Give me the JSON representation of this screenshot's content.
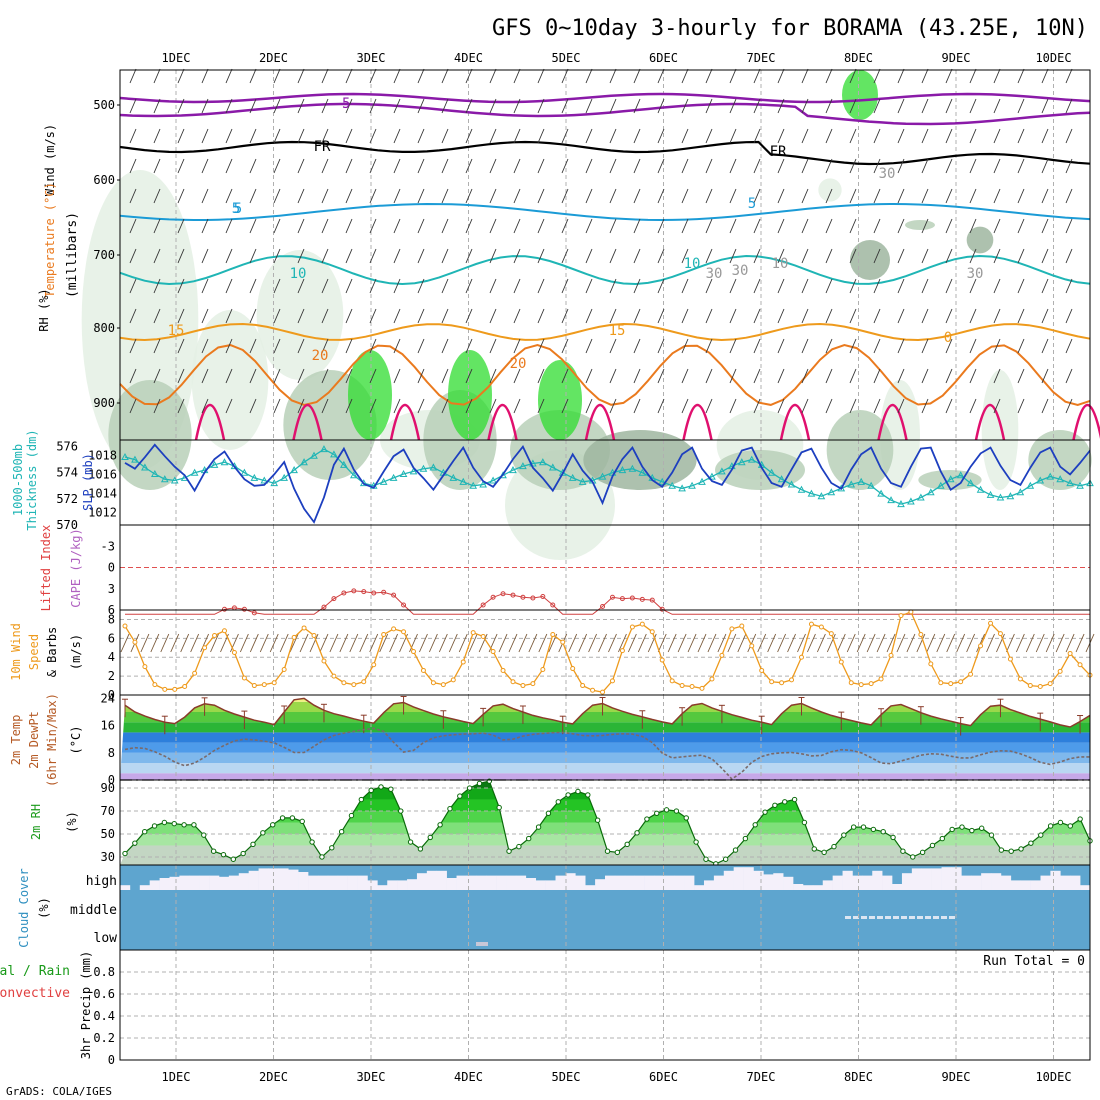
{
  "title": "GFS 0~10day 3-hourly for BORAMA (43.25E, 10N)",
  "credit": "GrADS: COLA/IGES",
  "day_labels": [
    "1DEC",
    "2DEC",
    "3DEC",
    "4DEC",
    "5DEC",
    "6DEC",
    "7DEC",
    "8DEC",
    "9DEC",
    "10DEC"
  ],
  "colors": {
    "purple": "#8a1aa8",
    "cyan": "#1b9bd6",
    "teal": "#1fb5b5",
    "orange": "#ee9a1c",
    "orange_dark": "#ea7a1e",
    "magenta": "#e0106e",
    "rh_light": "#e4f0e4",
    "rh_mid": "#b9d0b9",
    "rh_dark": "#9fb6a0",
    "green_bright": "#2fdc2f",
    "blue_slp": "#1d3fbf",
    "cloud": "#5ea5cf"
  },
  "panels": {
    "upper": {
      "ylabels": [
        {
          "text": "Wind (m/s)",
          "color": "#000000"
        },
        {
          "text": "Temperature (°C)",
          "color": "#ea7a1e"
        },
        {
          "text": "RH (%)",
          "color": "#000000"
        },
        {
          "text": "(millibars)",
          "color": "#000000"
        }
      ],
      "ticks": [
        "500",
        "600",
        "700",
        "800",
        "900"
      ],
      "contour_labels": [
        "5",
        "-5",
        "FR",
        "FR",
        "30",
        "5",
        "5",
        "30",
        "10",
        "10",
        "10",
        "30",
        "30",
        "15",
        "15",
        "0",
        "20",
        "20"
      ]
    },
    "slp": {
      "ylabels_left": [
        {
          "text": "1000-500mb",
          "color": "#1fb5b5"
        },
        {
          "text": "Thickness (dm)",
          "color": "#1fb5b5"
        }
      ],
      "ylabel_right": {
        "text": "SLP (mb)",
        "color": "#1d3fbf"
      },
      "ticks_left": [
        "576",
        "574",
        "572",
        "570"
      ],
      "ticks_right": [
        "1018",
        "1016",
        "1014",
        "1012"
      ]
    },
    "cape": {
      "ylabels": [
        {
          "text": "Lifted Index",
          "color": "#e04040"
        },
        {
          "text": "CAPE (J/kg)",
          "color": "#b060c0"
        }
      ],
      "ticks": [
        "-3",
        "0",
        "3",
        "6"
      ]
    },
    "wind10": {
      "ylabels": [
        {
          "text": "10m Wind",
          "color": "#ee9a1c"
        },
        {
          "text": "Speed",
          "color": "#ee9a1c"
        },
        {
          "text": "& Barbs",
          "color": "#000000"
        },
        {
          "text": "(m/s)",
          "color": "#000000"
        }
      ],
      "ticks": [
        "8",
        "6",
        "4",
        "2",
        "0"
      ]
    },
    "temp": {
      "ylabels": [
        {
          "text": "2m Temp",
          "color": "#b55a25"
        },
        {
          "text": "2m DewPt",
          "color": "#b55a25"
        },
        {
          "text": "(6hr Min/Max)",
          "color": "#b55a25"
        },
        {
          "text": "(°C)",
          "color": "#000000"
        }
      ],
      "ticks": [
        "24",
        "16",
        "8",
        "0"
      ]
    },
    "rh2m": {
      "ylabels": [
        {
          "text": "2m RH",
          "color": "#1a9a1a"
        },
        {
          "text": "(%)",
          "color": "#000000"
        }
      ],
      "ticks": [
        "90",
        "70",
        "50",
        "30"
      ]
    },
    "cloud": {
      "ylabels": [
        {
          "text": "Cloud Cover",
          "color": "#3090c0"
        },
        {
          "text": "(%)",
          "color": "#000000"
        }
      ],
      "ticks": [
        "high",
        "middle",
        "low"
      ]
    },
    "precip": {
      "ylabels": [
        {
          "text": "Total / Rain",
          "color": "#1a9a1a"
        },
        {
          "text": "Convective",
          "color": "#e04040"
        },
        {
          "text": "3hr Precip (mm)",
          "color": "#000000"
        }
      ],
      "ticks": [
        "0.8",
        "0.6",
        "0.4",
        "0.2",
        "0"
      ],
      "run_total": "Run Total = 0"
    }
  },
  "chart_data": {
    "type": "line",
    "x_axis": "time (3-hourly, 30 NOV – 10 DEC)",
    "thickness_dm": {
      "ylim": [
        570,
        576.5
      ],
      "values": [
        575.2,
        575.0,
        574.4,
        573.9,
        573.5,
        573.4,
        573.6,
        574.0,
        574.2,
        574.6,
        574.8,
        574.5,
        574.0,
        573.6,
        573.4,
        573.2,
        573.6,
        574.2,
        574.8,
        575.3,
        575.8,
        575.4,
        574.6,
        573.8,
        573.2,
        573.0,
        573.3,
        573.6,
        573.9,
        574.1,
        574.3,
        574.4,
        574.0,
        573.6,
        573.3,
        573.0,
        573.1,
        573.4,
        573.8,
        574.2,
        574.5,
        574.7,
        574.8,
        574.4,
        574.0,
        573.6,
        573.3,
        573.4,
        573.7,
        574.0,
        574.2,
        574.3,
        574.0,
        573.6,
        573.3,
        573.0,
        572.8,
        573.0,
        573.3,
        573.7,
        574.1,
        574.5,
        574.8,
        575.0,
        574.6,
        574.0,
        573.5,
        573.1,
        572.7,
        572.4,
        572.2,
        572.5,
        572.8,
        573.1,
        573.3,
        573.0,
        572.4,
        571.9,
        571.6,
        571.8,
        572.1,
        572.5,
        573.0,
        573.5,
        573.8,
        573.2,
        572.7,
        572.3,
        572.1,
        572.2,
        572.5,
        573.0,
        573.4,
        573.7,
        573.5,
        573.2,
        573.0,
        573.2
      ]
    },
    "slp_mb": {
      "ylim": [
        1010.7,
        1019.6
      ],
      "values": [
        1017.2,
        1016.6,
        1017.8,
        1019.1,
        1017.9,
        1016.8,
        1015.9,
        1014.3,
        1016.2,
        1017.6,
        1018.4,
        1016.8,
        1015.5,
        1014.8,
        1014.9,
        1016.0,
        1017.3,
        1014.5,
        1012.4,
        1011.0,
        1013.6,
        1017.0,
        1018.7,
        1016.5,
        1015.0,
        1014.6,
        1016.3,
        1017.9,
        1018.6,
        1016.7,
        1015.6,
        1014.4,
        1015.9,
        1017.4,
        1018.8,
        1016.7,
        1015.3,
        1014.7,
        1016.0,
        1017.6,
        1018.9,
        1016.7,
        1015.6,
        1014.3,
        1016.1,
        1018.1,
        1016.4,
        1015.2,
        1013.0,
        1015.8,
        1017.6,
        1018.8,
        1016.8,
        1015.4,
        1014.7,
        1016.2,
        1018.1,
        1018.8,
        1016.6,
        1015.3,
        1014.9,
        1016.5,
        1018.5,
        1018.8,
        1016.7,
        1015.1,
        1014.7,
        1016.5,
        1018.3,
        1018.7,
        1016.7,
        1015.1,
        1014.5,
        1016.5,
        1018.1,
        1018.8,
        1016.6,
        1015.1,
        1014.7,
        1016.8,
        1018.7,
        1018.8,
        1016.3,
        1014.4,
        1015.1,
        1016.8,
        1018.2,
        1018.8,
        1016.9,
        1015.4,
        1014.9,
        1016.7,
        1018.3,
        1018.8,
        1016.8,
        1016.0,
        1017.2,
        1018.5
      ]
    },
    "lifted_index": {
      "ylim": [
        6,
        -6
      ],
      "values": [
        6.6,
        6.6,
        6.6,
        6.6,
        6.6,
        6.6,
        6.6,
        6.6,
        6.6,
        6.6,
        5.9,
        5.7,
        5.9,
        6.4,
        6.6,
        6.6,
        6.6,
        6.6,
        6.6,
        6.6,
        5.6,
        4.4,
        3.6,
        3.3,
        3.4,
        3.6,
        3.5,
        3.9,
        5.3,
        6.6,
        6.6,
        6.6,
        6.6,
        6.6,
        6.6,
        6.6,
        5.3,
        4.2,
        3.7,
        3.9,
        4.2,
        4.3,
        4.1,
        5.3,
        6.6,
        6.6,
        6.6,
        6.6,
        5.5,
        4.2,
        4.4,
        4.3,
        4.5,
        4.6,
        5.9,
        6.6,
        6.6,
        6.6,
        6.6,
        6.6,
        6.6,
        6.6,
        6.6,
        6.6,
        6.6,
        6.6,
        6.6,
        6.6,
        6.6,
        6.6,
        6.6,
        6.6,
        6.6,
        6.6,
        6.6,
        6.6,
        6.6,
        6.6,
        6.6,
        6.6,
        6.6,
        6.6,
        6.6,
        6.6,
        6.6,
        6.6,
        6.6,
        6.6,
        6.6,
        6.6,
        6.6,
        6.6,
        6.6,
        6.6,
        6.6,
        6.6,
        6.6,
        6.6
      ]
    },
    "wind10m_speed": {
      "ylim": [
        0,
        9
      ],
      "values": [
        7.3,
        5.6,
        3.0,
        1.1,
        0.6,
        0.6,
        0.9,
        2.3,
        5.0,
        6.3,
        6.8,
        4.5,
        1.8,
        1.0,
        1.1,
        1.3,
        2.7,
        6.1,
        7.1,
        6.3,
        3.6,
        2.0,
        1.3,
        1.1,
        1.4,
        3.2,
        6.4,
        7.0,
        6.7,
        4.6,
        2.6,
        1.3,
        1.1,
        1.6,
        3.5,
        6.6,
        6.2,
        4.6,
        2.6,
        1.4,
        1.0,
        1.2,
        2.7,
        6.4,
        5.6,
        2.8,
        1.0,
        0.5,
        0.3,
        1.5,
        4.7,
        7.2,
        7.5,
        6.7,
        3.7,
        1.5,
        1.0,
        0.9,
        0.7,
        1.7,
        4.2,
        7.0,
        7.3,
        5.2,
        2.6,
        1.4,
        1.3,
        1.6,
        4.0,
        7.5,
        7.2,
        6.5,
        3.5,
        1.3,
        1.1,
        1.2,
        1.7,
        4.2,
        8.4,
        8.8,
        6.4,
        3.3,
        1.3,
        1.2,
        1.4,
        2.2,
        5.2,
        7.6,
        6.5,
        3.8,
        1.7,
        1.0,
        0.9,
        1.2,
        2.5,
        4.4,
        3.2,
        2.1
      ]
    },
    "temp2m_c": {
      "ylim": [
        0,
        25
      ],
      "values": [
        22.0,
        20.0,
        18.8,
        17.8,
        17.0,
        16.6,
        18.5,
        21.2,
        22.4,
        22.0,
        20.5,
        19.4,
        18.5,
        17.6,
        17.0,
        16.3,
        20.0,
        23.6,
        24.0,
        22.0,
        20.5,
        19.5,
        18.8,
        18.0,
        17.3,
        16.7,
        19.8,
        22.4,
        22.8,
        21.5,
        20.4,
        19.4,
        18.6,
        17.9,
        17.2,
        16.6,
        19.3,
        21.8,
        22.3,
        21.0,
        20.0,
        19.0,
        18.3,
        17.7,
        17.0,
        16.5,
        19.5,
        22.0,
        22.5,
        21.2,
        20.2,
        19.3,
        18.6,
        17.8,
        17.1,
        16.5,
        19.5,
        22.0,
        22.5,
        21.2,
        20.2,
        19.2,
        18.4,
        17.6,
        17.0,
        16.3,
        19.5,
        22.0,
        22.5,
        21.2,
        20.0,
        19.0,
        18.2,
        17.5,
        16.8,
        16.2,
        19.2,
        21.8,
        22.2,
        21.0,
        19.8,
        18.8,
        18.0,
        17.3,
        16.6,
        16.0,
        19.2,
        21.7,
        22.0,
        20.7,
        19.7,
        18.7,
        17.9,
        17.1,
        16.2,
        15.6,
        17.2,
        19.0
      ]
    },
    "dewpt2m_c": {
      "ylim": [
        0,
        25
      ],
      "values": [
        9.0,
        9.5,
        9.3,
        8.3,
        7.0,
        5.3,
        4.2,
        5.0,
        6.7,
        8.7,
        10.2,
        11.5,
        12.0,
        11.8,
        11.4,
        10.9,
        9.6,
        8.1,
        8.1,
        9.9,
        11.8,
        13.1,
        13.8,
        14.3,
        14.8,
        15.2,
        14.3,
        11.1,
        8.2,
        8.7,
        11.0,
        12.4,
        13.0,
        13.3,
        13.5,
        13.6,
        13.8,
        13.2,
        11.8,
        12.0,
        12.9,
        13.4,
        13.7,
        13.9,
        14.0,
        13.6,
        13.1,
        13.0,
        13.1,
        13.4,
        13.6,
        13.5,
        12.8,
        11.0,
        7.9,
        6.5,
        6.8,
        7.1,
        7.3,
        6.2,
        3.4,
        0.3,
        2.3,
        5.2,
        6.9,
        7.7,
        8.0,
        8.1,
        7.7,
        7.1,
        7.2,
        8.3,
        8.9,
        8.7,
        8.0,
        6.6,
        5.0,
        4.8,
        5.6,
        6.4,
        7.3,
        7.7,
        7.6,
        7.0,
        6.5,
        6.5,
        7.4,
        8.2,
        8.6,
        8.5,
        7.7,
        6.6,
        5.2,
        4.6,
        5.3,
        6.3,
        6.8,
        6.8
      ]
    },
    "rh2m_pct": {
      "ylim": [
        23,
        97
      ],
      "values": [
        33,
        42,
        52,
        57,
        60,
        59,
        58,
        58,
        49,
        35,
        32,
        28,
        33,
        41,
        51,
        58,
        64,
        64,
        61,
        43,
        30,
        38,
        52,
        66,
        80,
        88,
        91,
        89,
        70,
        43,
        37,
        47,
        58,
        72,
        83,
        90,
        94,
        96,
        73,
        35,
        39,
        46,
        56,
        68,
        78,
        84,
        87,
        84,
        62,
        35,
        34,
        41,
        51,
        63,
        68,
        71,
        70,
        64,
        43,
        28,
        24,
        28,
        36,
        46,
        58,
        69,
        75,
        78,
        80,
        60,
        37,
        34,
        39,
        49,
        56,
        56,
        54,
        52,
        47,
        35,
        30,
        34,
        40,
        46,
        54,
        56,
        53,
        55,
        49,
        36,
        35,
        37,
        42,
        49,
        57,
        60,
        57,
        63,
        44
      ]
    },
    "cloud_high_pct": {
      "ylim": [
        0,
        100
      ],
      "values": [
        80,
        100,
        80,
        60,
        50,
        45,
        40,
        40,
        40,
        40,
        45,
        40,
        30,
        20,
        10,
        10,
        10,
        15,
        25,
        40,
        40,
        40,
        40,
        40,
        40,
        60,
        80,
        60,
        60,
        55,
        30,
        20,
        20,
        50,
        40,
        40,
        40,
        40,
        40,
        40,
        40,
        50,
        60,
        60,
        40,
        30,
        40,
        80,
        55,
        40,
        40,
        40,
        40,
        40,
        40,
        40,
        40,
        40,
        80,
        60,
        40,
        20,
        5,
        5,
        20,
        35,
        30,
        45,
        75,
        80,
        80,
        60,
        40,
        20,
        40,
        40,
        20,
        40,
        75,
        30,
        10,
        10,
        10,
        5,
        5,
        40,
        40,
        30,
        30,
        40,
        60,
        60,
        60,
        40,
        20,
        40,
        40,
        80
      ]
    },
    "cloud_mid_pct": {
      "ylim": [
        0,
        100
      ],
      "values": [
        100,
        100,
        100,
        100,
        100,
        100,
        100,
        100,
        100,
        100,
        100,
        100,
        100,
        100,
        100,
        100,
        100,
        100,
        100,
        100,
        100,
        100,
        100,
        100,
        100,
        100,
        100,
        100,
        100,
        100,
        100,
        100,
        100,
        100,
        100,
        100,
        100,
        100,
        100,
        100,
        100,
        100,
        100,
        100,
        100,
        100,
        100,
        100,
        100,
        100,
        100,
        100,
        100,
        100,
        100,
        100,
        100,
        100,
        100,
        100,
        100,
        100,
        100,
        100,
        100,
        100,
        100,
        100,
        100,
        100,
        100,
        100,
        100,
        100,
        100,
        100,
        100,
        100,
        100,
        100,
        100,
        100,
        100,
        100,
        100,
        100,
        100,
        100,
        100,
        100,
        100,
        100,
        100,
        100,
        100,
        100,
        100,
        100
      ]
    },
    "precip_3hr_mm": {
      "ylim": [
        0,
        1
      ],
      "values": [
        0,
        0,
        0,
        0,
        0,
        0,
        0,
        0,
        0,
        0,
        0,
        0,
        0,
        0,
        0,
        0,
        0,
        0,
        0,
        0,
        0,
        0,
        0,
        0,
        0,
        0,
        0,
        0,
        0,
        0,
        0,
        0,
        0,
        0,
        0,
        0,
        0,
        0,
        0,
        0,
        0,
        0,
        0,
        0,
        0,
        0,
        0,
        0,
        0,
        0,
        0,
        0,
        0,
        0,
        0,
        0,
        0,
        0,
        0,
        0,
        0,
        0,
        0,
        0,
        0,
        0,
        0,
        0,
        0,
        0,
        0,
        0,
        0,
        0,
        0,
        0,
        0,
        0,
        0,
        0,
        0,
        0,
        0,
        0,
        0,
        0,
        0,
        0,
        0,
        0,
        0,
        0,
        0,
        0,
        0,
        0,
        0,
        0
      ]
    }
  }
}
